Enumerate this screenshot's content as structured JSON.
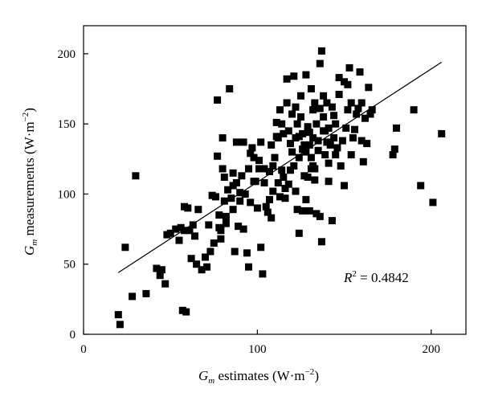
{
  "chart_data": {
    "type": "scatter",
    "title": "",
    "xlabel": {
      "var": "G",
      "sub": "m",
      "rest": " estimates (W·m",
      "sup": "−2",
      "close": ")"
    },
    "ylabel": {
      "var": "G",
      "sub": "m",
      "rest": " measurements (W·m",
      "sup": "−2",
      "close": ")"
    },
    "xlim": [
      0,
      220
    ],
    "ylim": [
      0,
      220
    ],
    "xticks": [
      0,
      100,
      200
    ],
    "yticks": [
      0,
      50,
      100,
      150,
      200
    ],
    "grid": false,
    "annotation": {
      "lhs": "R",
      "sup": "2",
      "rhs": " = 0.4842"
    },
    "trendline": {
      "x": [
        20,
        206
      ],
      "y": [
        44,
        194
      ]
    },
    "points": [
      [
        20,
        14
      ],
      [
        21,
        7
      ],
      [
        24,
        62
      ],
      [
        28,
        27
      ],
      [
        30,
        113
      ],
      [
        36,
        29
      ],
      [
        42,
        47
      ],
      [
        44,
        42
      ],
      [
        45,
        46
      ],
      [
        47,
        36
      ],
      [
        48,
        71
      ],
      [
        50,
        72
      ],
      [
        53,
        75
      ],
      [
        55,
        67
      ],
      [
        56,
        76
      ],
      [
        57,
        17
      ],
      [
        58,
        74
      ],
      [
        58,
        91
      ],
      [
        59,
        16
      ],
      [
        60,
        90
      ],
      [
        61,
        74
      ],
      [
        62,
        54
      ],
      [
        63,
        78
      ],
      [
        64,
        70
      ],
      [
        65,
        50
      ],
      [
        66,
        89
      ],
      [
        68,
        46
      ],
      [
        70,
        55
      ],
      [
        71,
        48
      ],
      [
        72,
        78
      ],
      [
        73,
        59
      ],
      [
        74,
        99
      ],
      [
        75,
        65
      ],
      [
        76,
        98
      ],
      [
        77,
        167
      ],
      [
        77,
        127
      ],
      [
        78,
        85
      ],
      [
        78,
        76
      ],
      [
        79,
        74
      ],
      [
        79,
        68
      ],
      [
        80,
        118
      ],
      [
        80,
        140
      ],
      [
        81,
        112
      ],
      [
        81,
        95
      ],
      [
        82,
        84
      ],
      [
        82,
        79
      ],
      [
        83,
        103
      ],
      [
        84,
        175
      ],
      [
        85,
        97
      ],
      [
        86,
        89
      ],
      [
        86,
        106
      ],
      [
        87,
        59
      ],
      [
        88,
        108
      ],
      [
        88,
        137
      ],
      [
        89,
        77
      ],
      [
        90,
        95
      ],
      [
        91,
        113
      ],
      [
        92,
        75
      ],
      [
        93,
        100
      ],
      [
        94,
        58
      ],
      [
        95,
        118
      ],
      [
        95,
        48
      ],
      [
        96,
        94
      ],
      [
        96,
        129
      ],
      [
        97,
        133
      ],
      [
        98,
        126
      ],
      [
        99,
        109
      ],
      [
        100,
        90
      ],
      [
        101,
        124
      ],
      [
        102,
        137
      ],
      [
        102,
        62
      ],
      [
        103,
        43
      ],
      [
        104,
        108
      ],
      [
        105,
        91
      ],
      [
        106,
        87
      ],
      [
        107,
        116
      ],
      [
        108,
        135
      ],
      [
        109,
        102
      ],
      [
        110,
        126
      ],
      [
        111,
        151
      ],
      [
        111,
        141
      ],
      [
        112,
        140
      ],
      [
        113,
        160
      ],
      [
        113,
        98
      ],
      [
        114,
        117
      ],
      [
        115,
        112
      ],
      [
        115,
        143
      ],
      [
        116,
        104
      ],
      [
        116,
        97
      ],
      [
        117,
        182
      ],
      [
        118,
        145
      ],
      [
        118,
        107
      ],
      [
        119,
        136
      ],
      [
        120,
        157
      ],
      [
        120,
        130
      ],
      [
        121,
        184
      ],
      [
        121,
        120
      ],
      [
        122,
        102
      ],
      [
        122,
        162
      ],
      [
        123,
        89
      ],
      [
        123,
        150
      ],
      [
        124,
        141
      ],
      [
        124,
        72
      ],
      [
        125,
        170
      ],
      [
        125,
        155
      ],
      [
        126,
        88
      ],
      [
        126,
        143
      ],
      [
        127,
        113
      ],
      [
        128,
        185
      ],
      [
        128,
        130
      ],
      [
        129,
        148
      ],
      [
        129,
        112
      ],
      [
        130,
        135
      ],
      [
        130,
        88
      ],
      [
        131,
        126
      ],
      [
        131,
        175
      ],
      [
        132,
        160
      ],
      [
        132,
        140
      ],
      [
        133,
        165
      ],
      [
        133,
        118
      ],
      [
        134,
        150
      ],
      [
        134,
        86
      ],
      [
        135,
        138
      ],
      [
        135,
        131
      ],
      [
        136,
        193
      ],
      [
        136,
        84
      ],
      [
        137,
        202
      ],
      [
        137,
        66
      ],
      [
        138,
        155
      ],
      [
        138,
        145
      ],
      [
        139,
        128
      ],
      [
        140,
        165
      ],
      [
        140,
        137
      ],
      [
        141,
        147
      ],
      [
        141,
        122
      ],
      [
        142,
        135
      ],
      [
        143,
        162
      ],
      [
        143,
        81
      ],
      [
        144,
        140
      ],
      [
        145,
        128
      ],
      [
        146,
        133
      ],
      [
        147,
        183
      ],
      [
        148,
        120
      ],
      [
        149,
        138
      ],
      [
        150,
        180
      ],
      [
        150,
        106
      ],
      [
        151,
        147
      ],
      [
        152,
        160
      ],
      [
        153,
        190
      ],
      [
        154,
        128
      ],
      [
        155,
        140
      ],
      [
        156,
        146
      ],
      [
        157,
        157
      ],
      [
        158,
        161
      ],
      [
        159,
        187
      ],
      [
        160,
        138
      ],
      [
        161,
        123
      ],
      [
        162,
        154
      ],
      [
        163,
        136
      ],
      [
        164,
        176
      ],
      [
        165,
        157
      ],
      [
        166,
        160
      ],
      [
        178,
        128
      ],
      [
        179,
        132
      ],
      [
        180,
        147
      ],
      [
        190,
        160
      ],
      [
        194,
        106
      ],
      [
        201,
        94
      ],
      [
        206,
        143
      ],
      [
        104,
        118
      ],
      [
        109,
        120
      ],
      [
        112,
        108
      ],
      [
        119,
        117
      ],
      [
        124,
        126
      ],
      [
        127,
        135
      ],
      [
        130,
        144
      ],
      [
        133,
        110
      ],
      [
        139,
        145
      ],
      [
        141,
        109
      ],
      [
        144,
        156
      ],
      [
        147,
        171
      ],
      [
        152,
        178
      ],
      [
        108,
        83
      ],
      [
        117,
        165
      ],
      [
        122,
        140
      ],
      [
        128,
        96
      ],
      [
        131,
        118
      ],
      [
        136,
        161
      ],
      [
        98,
        109
      ],
      [
        90,
        101
      ],
      [
        86,
        115
      ],
      [
        92,
        137
      ],
      [
        101,
        118
      ],
      [
        107,
        96
      ],
      [
        114,
        150
      ],
      [
        126,
        132
      ],
      [
        132,
        120
      ],
      [
        138,
        170
      ],
      [
        145,
        150
      ],
      [
        154,
        165
      ],
      [
        160,
        165
      ]
    ]
  }
}
